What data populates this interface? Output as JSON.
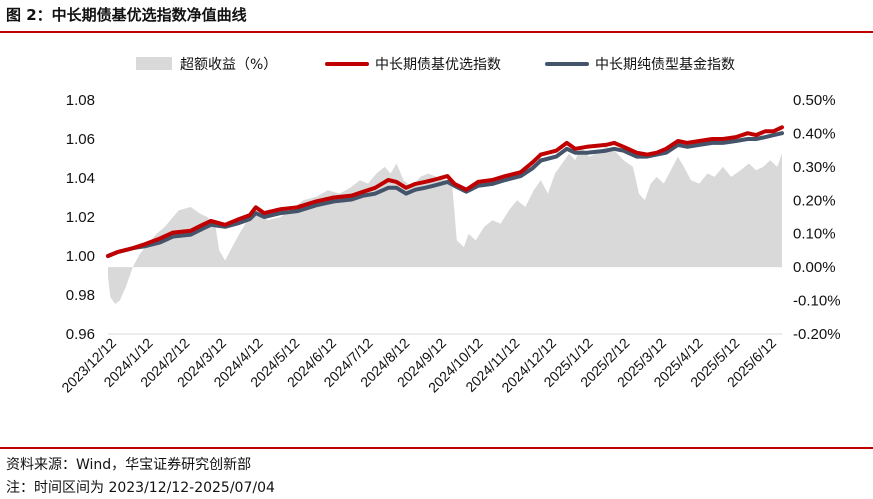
{
  "figure": {
    "title": "图 2：中长期债基优选指数净值曲线",
    "source": "资料来源：Wind，华宝证券研究创新部",
    "range_note": "注：时间区间为 2023/12/12-2025/07/04"
  },
  "colors": {
    "excess_area": "#d9d9d9",
    "select_index": "#c00000",
    "pure_bond_index": "#44546a",
    "rule": "#c00000"
  },
  "chart_data": {
    "type": "line",
    "title": "",
    "legend": {
      "placement": "top",
      "entries": [
        "超额收益（%）",
        "中长期债基优选指数",
        "中长期纯债型基金指数"
      ]
    },
    "x_ticks": [
      "2023/12/12",
      "2024/1/12",
      "2024/2/12",
      "2024/3/12",
      "2024/4/12",
      "2024/5/12",
      "2024/6/12",
      "2024/7/12",
      "2024/8/12",
      "2024/9/12",
      "2024/10/12",
      "2024/11/12",
      "2024/12/12",
      "2025/1/12",
      "2025/2/12",
      "2025/3/12",
      "2025/4/12",
      "2025/5/12",
      "2025/6/12"
    ],
    "y_left": {
      "ylim": [
        0.96,
        1.08
      ],
      "ticks": [
        "0.96",
        "0.98",
        "1.00",
        "1.02",
        "1.04",
        "1.06",
        "1.08"
      ],
      "tick_values": [
        0.96,
        0.98,
        1.0,
        1.02,
        1.04,
        1.06,
        1.08
      ]
    },
    "y_right": {
      "ylim": [
        -0.2,
        0.5
      ],
      "ticks": [
        "-0.20%",
        "-0.10%",
        "0.00%",
        "0.10%",
        "0.20%",
        "0.30%",
        "0.40%",
        "0.50%"
      ],
      "tick_values": [
        -0.2,
        -0.1,
        0,
        0.1,
        0.2,
        0.3,
        0.4,
        0.5
      ]
    },
    "x_range": [
      "2023-12-12",
      "2025-07-04"
    ],
    "series": [
      {
        "name": "中长期债基优选指数",
        "axis": "left",
        "kind": "line",
        "points": [
          [
            "2023-12-12",
            1.0
          ],
          [
            "2023-12-20",
            1.002
          ],
          [
            "2024-01-02",
            1.004
          ],
          [
            "2024-01-12",
            1.006
          ],
          [
            "2024-01-25",
            1.009
          ],
          [
            "2024-02-05",
            1.012
          ],
          [
            "2024-02-20",
            1.013
          ],
          [
            "2024-03-01",
            1.016
          ],
          [
            "2024-03-08",
            1.018
          ],
          [
            "2024-03-20",
            1.016
          ],
          [
            "2024-04-01",
            1.019
          ],
          [
            "2024-04-10",
            1.021
          ],
          [
            "2024-04-15",
            1.025
          ],
          [
            "2024-04-22",
            1.022
          ],
          [
            "2024-05-06",
            1.024
          ],
          [
            "2024-05-20",
            1.025
          ],
          [
            "2024-06-05",
            1.028
          ],
          [
            "2024-06-20",
            1.03
          ],
          [
            "2024-07-05",
            1.031
          ],
          [
            "2024-07-15",
            1.033
          ],
          [
            "2024-07-25",
            1.035
          ],
          [
            "2024-08-05",
            1.039
          ],
          [
            "2024-08-12",
            1.038
          ],
          [
            "2024-08-20",
            1.035
          ],
          [
            "2024-08-28",
            1.037
          ],
          [
            "2024-09-05",
            1.038
          ],
          [
            "2024-09-12",
            1.039
          ],
          [
            "2024-09-24",
            1.041
          ],
          [
            "2024-09-30",
            1.037
          ],
          [
            "2024-10-10",
            1.034
          ],
          [
            "2024-10-20",
            1.038
          ],
          [
            "2024-11-01",
            1.039
          ],
          [
            "2024-11-12",
            1.041
          ],
          [
            "2024-11-25",
            1.043
          ],
          [
            "2024-12-05",
            1.048
          ],
          [
            "2024-12-12",
            1.052
          ],
          [
            "2024-12-25",
            1.054
          ],
          [
            "2025-01-03",
            1.058
          ],
          [
            "2025-01-10",
            1.055
          ],
          [
            "2025-01-20",
            1.056
          ],
          [
            "2025-02-05",
            1.057
          ],
          [
            "2025-02-12",
            1.058
          ],
          [
            "2025-02-20",
            1.056
          ],
          [
            "2025-03-03",
            1.053
          ],
          [
            "2025-03-12",
            1.052
          ],
          [
            "2025-03-20",
            1.053
          ],
          [
            "2025-03-28",
            1.055
          ],
          [
            "2025-04-07",
            1.059
          ],
          [
            "2025-04-15",
            1.058
          ],
          [
            "2025-04-25",
            1.059
          ],
          [
            "2025-05-06",
            1.06
          ],
          [
            "2025-05-15",
            1.06
          ],
          [
            "2025-05-26",
            1.061
          ],
          [
            "2025-06-05",
            1.063
          ],
          [
            "2025-06-12",
            1.062
          ],
          [
            "2025-06-20",
            1.064
          ],
          [
            "2025-06-27",
            1.064
          ],
          [
            "2025-07-04",
            1.066
          ]
        ]
      },
      {
        "name": "中长期纯债型基金指数",
        "axis": "left",
        "kind": "line",
        "points": [
          [
            "2023-12-12",
            1.0
          ],
          [
            "2023-12-20",
            1.002
          ],
          [
            "2024-01-02",
            1.004
          ],
          [
            "2024-01-12",
            1.005
          ],
          [
            "2024-01-25",
            1.007
          ],
          [
            "2024-02-05",
            1.01
          ],
          [
            "2024-02-20",
            1.011
          ],
          [
            "2024-03-01",
            1.014
          ],
          [
            "2024-03-08",
            1.016
          ],
          [
            "2024-03-20",
            1.015
          ],
          [
            "2024-04-01",
            1.017
          ],
          [
            "2024-04-10",
            1.019
          ],
          [
            "2024-04-15",
            1.022
          ],
          [
            "2024-04-22",
            1.02
          ],
          [
            "2024-05-06",
            1.022
          ],
          [
            "2024-05-20",
            1.023
          ],
          [
            "2024-06-05",
            1.026
          ],
          [
            "2024-06-20",
            1.028
          ],
          [
            "2024-07-05",
            1.029
          ],
          [
            "2024-07-15",
            1.031
          ],
          [
            "2024-07-25",
            1.032
          ],
          [
            "2024-08-05",
            1.035
          ],
          [
            "2024-08-12",
            1.035
          ],
          [
            "2024-08-20",
            1.032
          ],
          [
            "2024-08-28",
            1.034
          ],
          [
            "2024-09-05",
            1.035
          ],
          [
            "2024-09-12",
            1.036
          ],
          [
            "2024-09-24",
            1.038
          ],
          [
            "2024-09-30",
            1.036
          ],
          [
            "2024-10-10",
            1.033
          ],
          [
            "2024-10-20",
            1.036
          ],
          [
            "2024-11-01",
            1.037
          ],
          [
            "2024-11-12",
            1.039
          ],
          [
            "2024-11-25",
            1.041
          ],
          [
            "2024-12-05",
            1.045
          ],
          [
            "2024-12-12",
            1.049
          ],
          [
            "2024-12-25",
            1.051
          ],
          [
            "2025-01-03",
            1.055
          ],
          [
            "2025-01-10",
            1.053
          ],
          [
            "2025-01-20",
            1.053
          ],
          [
            "2025-02-05",
            1.054
          ],
          [
            "2025-02-12",
            1.055
          ],
          [
            "2025-02-20",
            1.054
          ],
          [
            "2025-03-03",
            1.051
          ],
          [
            "2025-03-12",
            1.051
          ],
          [
            "2025-03-20",
            1.052
          ],
          [
            "2025-03-28",
            1.053
          ],
          [
            "2025-04-07",
            1.057
          ],
          [
            "2025-04-15",
            1.056
          ],
          [
            "2025-04-25",
            1.057
          ],
          [
            "2025-05-06",
            1.058
          ],
          [
            "2025-05-15",
            1.058
          ],
          [
            "2025-05-26",
            1.059
          ],
          [
            "2025-06-05",
            1.06
          ],
          [
            "2025-06-12",
            1.06
          ],
          [
            "2025-06-20",
            1.061
          ],
          [
            "2025-06-27",
            1.062
          ],
          [
            "2025-07-04",
            1.063
          ]
        ]
      },
      {
        "name": "超额收益（%）",
        "axis": "right",
        "kind": "area",
        "points": [
          [
            "2023-12-12",
            -0.03
          ],
          [
            "2023-12-14",
            -0.09
          ],
          [
            "2023-12-18",
            -0.11
          ],
          [
            "2023-12-22",
            -0.1
          ],
          [
            "2023-12-27",
            -0.06
          ],
          [
            "2024-01-02",
            0.0
          ],
          [
            "2024-01-08",
            0.04
          ],
          [
            "2024-01-15",
            0.07
          ],
          [
            "2024-01-22",
            0.1
          ],
          [
            "2024-01-29",
            0.12
          ],
          [
            "2024-02-05",
            0.15
          ],
          [
            "2024-02-10",
            0.17
          ],
          [
            "2024-02-20",
            0.18
          ],
          [
            "2024-02-28",
            0.16
          ],
          [
            "2024-03-05",
            0.15
          ],
          [
            "2024-03-12",
            0.12
          ],
          [
            "2024-03-15",
            0.05
          ],
          [
            "2024-03-20",
            0.02
          ],
          [
            "2024-03-26",
            0.06
          ],
          [
            "2024-04-01",
            0.1
          ],
          [
            "2024-04-08",
            0.14
          ],
          [
            "2024-04-12",
            0.18
          ],
          [
            "2024-04-18",
            0.16
          ],
          [
            "2024-04-25",
            0.14
          ],
          [
            "2024-05-06",
            0.15
          ],
          [
            "2024-05-15",
            0.17
          ],
          [
            "2024-05-25",
            0.2
          ],
          [
            "2024-06-05",
            0.21
          ],
          [
            "2024-06-15",
            0.23
          ],
          [
            "2024-06-25",
            0.22
          ],
          [
            "2024-07-05",
            0.24
          ],
          [
            "2024-07-12",
            0.26
          ],
          [
            "2024-07-19",
            0.25
          ],
          [
            "2024-07-26",
            0.28
          ],
          [
            "2024-08-02",
            0.3
          ],
          [
            "2024-08-07",
            0.28
          ],
          [
            "2024-08-12",
            0.31
          ],
          [
            "2024-08-18",
            0.26
          ],
          [
            "2024-08-25",
            0.24
          ],
          [
            "2024-09-01",
            0.27
          ],
          [
            "2024-09-08",
            0.28
          ],
          [
            "2024-09-15",
            0.27
          ],
          [
            "2024-09-22",
            0.26
          ],
          [
            "2024-09-28",
            0.25
          ],
          [
            "2024-10-02",
            0.08
          ],
          [
            "2024-10-08",
            0.06
          ],
          [
            "2024-10-12",
            0.1
          ],
          [
            "2024-10-18",
            0.08
          ],
          [
            "2024-10-25",
            0.12
          ],
          [
            "2024-11-01",
            0.14
          ],
          [
            "2024-11-08",
            0.13
          ],
          [
            "2024-11-15",
            0.17
          ],
          [
            "2024-11-22",
            0.2
          ],
          [
            "2024-11-29",
            0.18
          ],
          [
            "2024-12-06",
            0.23
          ],
          [
            "2024-12-12",
            0.26
          ],
          [
            "2024-12-18",
            0.22
          ],
          [
            "2024-12-24",
            0.28
          ],
          [
            "2024-12-30",
            0.31
          ],
          [
            "2025-01-05",
            0.34
          ],
          [
            "2025-01-10",
            0.32
          ],
          [
            "2025-01-15",
            0.36
          ],
          [
            "2025-01-22",
            0.33
          ],
          [
            "2025-01-28",
            0.34
          ],
          [
            "2025-02-05",
            0.36
          ],
          [
            "2025-02-12",
            0.35
          ],
          [
            "2025-02-20",
            0.32
          ],
          [
            "2025-02-28",
            0.3
          ],
          [
            "2025-03-05",
            0.22
          ],
          [
            "2025-03-10",
            0.2
          ],
          [
            "2025-03-15",
            0.25
          ],
          [
            "2025-03-20",
            0.27
          ],
          [
            "2025-03-26",
            0.25
          ],
          [
            "2025-04-01",
            0.29
          ],
          [
            "2025-04-07",
            0.33
          ],
          [
            "2025-04-12",
            0.3
          ],
          [
            "2025-04-18",
            0.26
          ],
          [
            "2025-04-25",
            0.25
          ],
          [
            "2025-05-02",
            0.28
          ],
          [
            "2025-05-08",
            0.27
          ],
          [
            "2025-05-15",
            0.3
          ],
          [
            "2025-05-22",
            0.27
          ],
          [
            "2025-05-30",
            0.29
          ],
          [
            "2025-06-06",
            0.31
          ],
          [
            "2025-06-12",
            0.29
          ],
          [
            "2025-06-18",
            0.3
          ],
          [
            "2025-06-24",
            0.32
          ],
          [
            "2025-06-30",
            0.3
          ],
          [
            "2025-07-04",
            0.34
          ]
        ]
      }
    ]
  }
}
